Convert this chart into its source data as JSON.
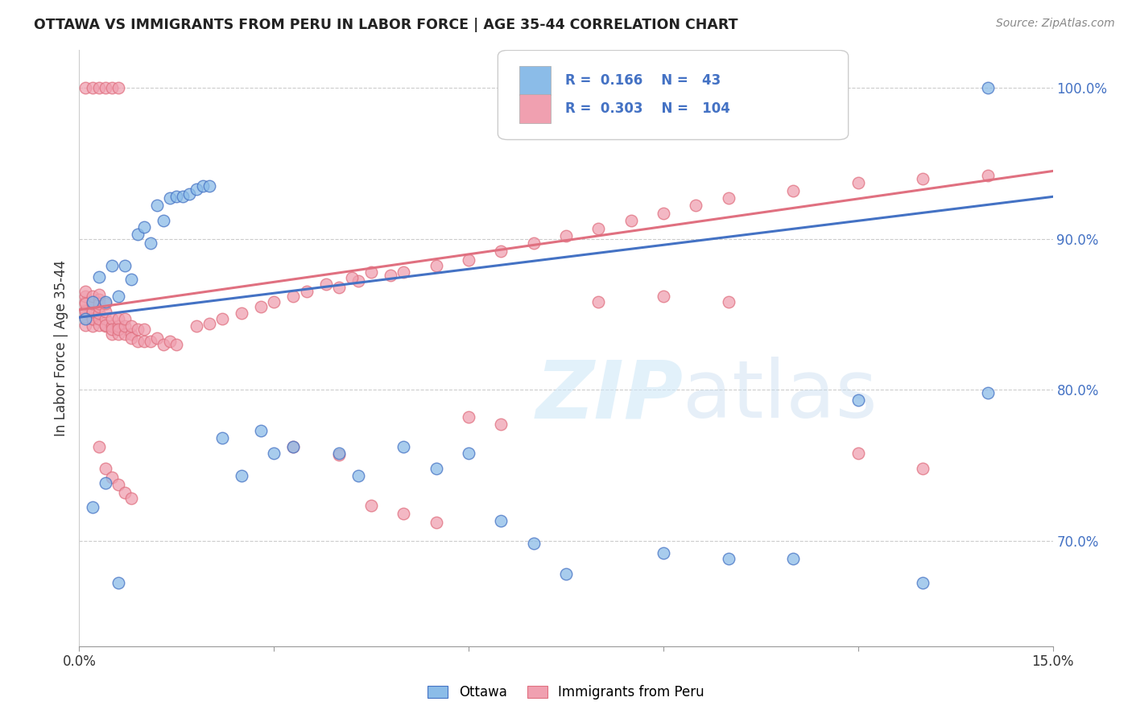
{
  "title": "OTTAWA VS IMMIGRANTS FROM PERU IN LABOR FORCE | AGE 35-44 CORRELATION CHART",
  "source": "Source: ZipAtlas.com",
  "ylabel": "In Labor Force | Age 35-44",
  "xlim": [
    0.0,
    0.15
  ],
  "ylim": [
    0.63,
    1.025
  ],
  "xticks": [
    0.0,
    0.03,
    0.06,
    0.09,
    0.12,
    0.15
  ],
  "xticklabels": [
    "0.0%",
    "",
    "",
    "",
    "",
    "15.0%"
  ],
  "yticks_right": [
    0.7,
    0.8,
    0.9,
    1.0
  ],
  "yticklabels_right": [
    "70.0%",
    "80.0%",
    "90.0%",
    "100.0%"
  ],
  "legend_r1": "0.166",
  "legend_n1": "43",
  "legend_r2": "0.303",
  "legend_n2": "104",
  "color_ottawa": "#8bbce8",
  "color_peru": "#f0a0b0",
  "color_line_ottawa": "#4472c4",
  "color_line_peru": "#e07080",
  "color_right_axis": "#4472c4",
  "ottawa_x": [
    0.001,
    0.002,
    0.003,
    0.004,
    0.005,
    0.006,
    0.007,
    0.008,
    0.009,
    0.01,
    0.011,
    0.012,
    0.013,
    0.014,
    0.015,
    0.016,
    0.017,
    0.018,
    0.019,
    0.02,
    0.022,
    0.025,
    0.028,
    0.03,
    0.033,
    0.04,
    0.043,
    0.05,
    0.055,
    0.06,
    0.065,
    0.07,
    0.075,
    0.09,
    0.1,
    0.11,
    0.12,
    0.13,
    0.14,
    0.14,
    0.002,
    0.004,
    0.006
  ],
  "ottawa_y": [
    0.847,
    0.858,
    0.875,
    0.858,
    0.882,
    0.862,
    0.882,
    0.873,
    0.903,
    0.908,
    0.897,
    0.922,
    0.912,
    0.927,
    0.928,
    0.928,
    0.93,
    0.933,
    0.935,
    0.935,
    0.768,
    0.743,
    0.773,
    0.758,
    0.762,
    0.758,
    0.743,
    0.762,
    0.748,
    0.758,
    0.713,
    0.698,
    0.678,
    0.692,
    0.688,
    0.688,
    0.793,
    0.672,
    0.798,
    1.0,
    0.722,
    0.738,
    0.672
  ],
  "peru_x": [
    0.001,
    0.001,
    0.001,
    0.001,
    0.001,
    0.001,
    0.001,
    0.001,
    0.002,
    0.002,
    0.002,
    0.002,
    0.002,
    0.002,
    0.002,
    0.002,
    0.003,
    0.003,
    0.003,
    0.003,
    0.003,
    0.003,
    0.003,
    0.004,
    0.004,
    0.004,
    0.004,
    0.004,
    0.005,
    0.005,
    0.005,
    0.005,
    0.006,
    0.006,
    0.006,
    0.006,
    0.007,
    0.007,
    0.007,
    0.008,
    0.008,
    0.008,
    0.009,
    0.009,
    0.01,
    0.01,
    0.011,
    0.012,
    0.013,
    0.014,
    0.015,
    0.018,
    0.02,
    0.022,
    0.025,
    0.028,
    0.03,
    0.033,
    0.035,
    0.04,
    0.043,
    0.048,
    0.05,
    0.055,
    0.06,
    0.038,
    0.042,
    0.045,
    0.065,
    0.07,
    0.075,
    0.08,
    0.085,
    0.09,
    0.095,
    0.1,
    0.11,
    0.12,
    0.13,
    0.14,
    0.003,
    0.004,
    0.005,
    0.006,
    0.007,
    0.008,
    0.033,
    0.04,
    0.045,
    0.05,
    0.055,
    0.06,
    0.065,
    0.08,
    0.09,
    0.1,
    0.12,
    0.13,
    0.001,
    0.002,
    0.003,
    0.004,
    0.005,
    0.006
  ],
  "peru_y": [
    0.843,
    0.848,
    0.853,
    0.858,
    0.862,
    0.852,
    0.857,
    0.865,
    0.842,
    0.847,
    0.852,
    0.857,
    0.847,
    0.852,
    0.857,
    0.862,
    0.843,
    0.847,
    0.851,
    0.855,
    0.86,
    0.857,
    0.863,
    0.842,
    0.847,
    0.852,
    0.857,
    0.843,
    0.837,
    0.842,
    0.847,
    0.84,
    0.837,
    0.842,
    0.847,
    0.84,
    0.837,
    0.842,
    0.847,
    0.837,
    0.842,
    0.834,
    0.832,
    0.84,
    0.832,
    0.84,
    0.832,
    0.834,
    0.83,
    0.832,
    0.83,
    0.842,
    0.844,
    0.847,
    0.851,
    0.855,
    0.858,
    0.862,
    0.865,
    0.868,
    0.872,
    0.876,
    0.878,
    0.882,
    0.886,
    0.87,
    0.874,
    0.878,
    0.892,
    0.897,
    0.902,
    0.907,
    0.912,
    0.917,
    0.922,
    0.927,
    0.932,
    0.937,
    0.94,
    0.942,
    0.762,
    0.748,
    0.742,
    0.737,
    0.732,
    0.728,
    0.762,
    0.757,
    0.723,
    0.718,
    0.712,
    0.782,
    0.777,
    0.858,
    0.862,
    0.858,
    0.758,
    0.748,
    1.0,
    1.0,
    1.0,
    1.0,
    1.0,
    1.0
  ]
}
